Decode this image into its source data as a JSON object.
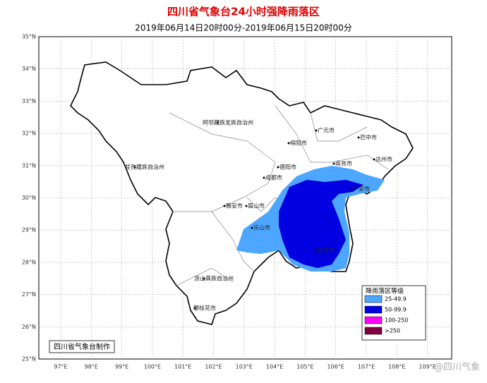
{
  "header": {
    "title": "四川省气象台24小时强降雨落区",
    "subtitle": "2019年06月14日20时00分-2019年06月15日20时00分"
  },
  "axes": {
    "lat_labels": [
      "35°N",
      "34°N",
      "33°N",
      "32°N",
      "31°N",
      "30°N",
      "29°N",
      "28°N",
      "27°N",
      "26°N",
      "25°N"
    ],
    "lon_labels": [
      "97°E",
      "98°E",
      "99°E",
      "100°E",
      "101°E",
      "102°E",
      "103°E",
      "104°E",
      "105°E",
      "106°E",
      "107°E",
      "108°E",
      "109°E"
    ]
  },
  "places": [
    "阿坝藏族羌族自治州",
    "甘孜藏族自治州",
    "广元市",
    "巴中市",
    "绵阳市",
    "达州市",
    "南充市",
    "德阳市",
    "成都市",
    "广安市",
    "雅安市",
    "眉山市",
    "乐山市",
    "宜宾市",
    "凉山彝族自治州",
    "攀枝花市"
  ],
  "legend": {
    "title": "降雨落区等级",
    "items": [
      {
        "label": "25-49.9",
        "color": "#4da6ff"
      },
      {
        "label": "50-99.9",
        "color": "#0000e0"
      },
      {
        "label": "100-250",
        "color": "#ff00ff"
      },
      {
        "label": ">250",
        "color": "#800040"
      }
    ]
  },
  "credit": "四川省气象台制作",
  "watermark": "@四川气象"
}
